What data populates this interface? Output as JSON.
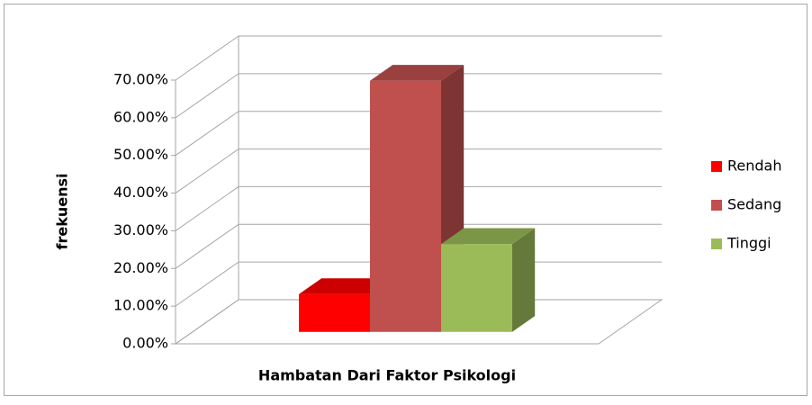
{
  "chart_data": {
    "type": "bar3d",
    "x_label": "Hambatan Dari Faktor Psikologi",
    "y_label": "frekuensi",
    "categories": [
      null
    ],
    "series": [
      {
        "name": "Rendah",
        "color": "#ff0000",
        "values": [
          10
        ]
      },
      {
        "name": "Sedang",
        "color": "#c0504d",
        "values": [
          66.67
        ]
      },
      {
        "name": "Tinggi",
        "color": "#9bbb59",
        "values": [
          23.33
        ]
      }
    ],
    "ylim": [
      0,
      70
    ],
    "yticks": [
      {
        "value": 0,
        "label": "0.00%"
      },
      {
        "value": 10,
        "label": "10.00%"
      },
      {
        "value": 20,
        "label": "20.00%"
      },
      {
        "value": 30,
        "label": "30.00%"
      },
      {
        "value": 40,
        "label": "40.00%"
      },
      {
        "value": 50,
        "label": "50.00%"
      },
      {
        "value": 60,
        "label": "60.00%"
      },
      {
        "value": 70,
        "label": "70.00%"
      }
    ],
    "grid": true,
    "legend": "right"
  }
}
